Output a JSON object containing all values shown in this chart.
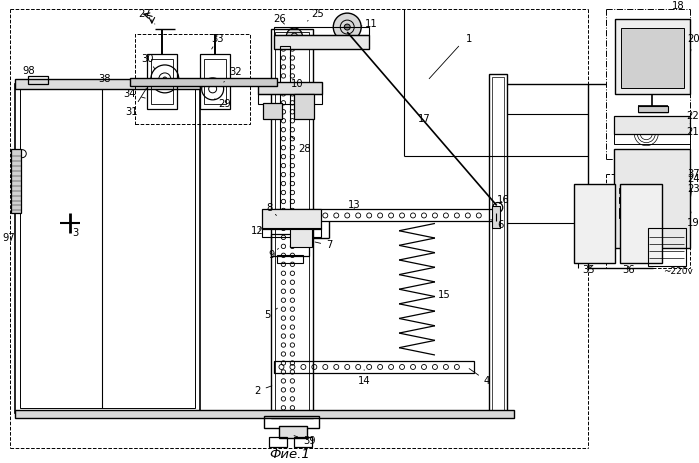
{
  "bg_color": "#ffffff",
  "line_color": "#000000",
  "caption": "Фие.1",
  "fs": 7.2,
  "caption_fs": 9.5
}
